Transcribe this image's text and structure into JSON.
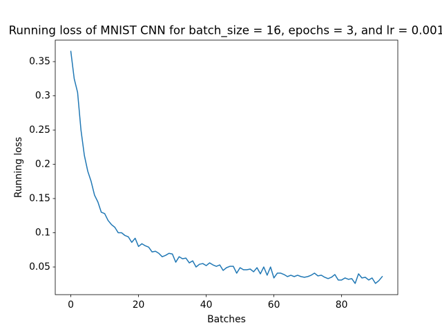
{
  "chart_data": {
    "type": "line",
    "title": "Running loss of MNIST CNN for batch_size = 16, epochs = 3, and lr = 0.001",
    "x_label": "Batches",
    "y_label": "Running loss",
    "x": [
      0,
      1,
      2,
      3,
      4,
      5,
      6,
      7,
      8,
      9,
      10,
      11,
      12,
      13,
      14,
      15,
      16,
      17,
      18,
      19,
      20,
      21,
      22,
      23,
      24,
      25,
      26,
      27,
      28,
      29,
      30,
      31,
      32,
      33,
      34,
      35,
      36,
      37,
      38,
      39,
      40,
      41,
      42,
      43,
      44,
      45,
      46,
      47,
      48,
      49,
      50,
      51,
      52,
      53,
      54,
      55,
      56,
      57,
      58,
      59,
      60,
      61,
      62,
      63,
      64,
      65,
      66,
      67,
      68,
      69,
      70,
      71,
      72,
      73,
      74,
      75,
      76,
      77,
      78,
      79,
      80,
      81,
      82,
      83,
      84,
      85,
      86,
      87,
      88,
      89,
      90,
      91,
      92
    ],
    "series": [
      {
        "name": "Running loss",
        "color": "#1f77b4",
        "values": [
          0.365,
          0.325,
          0.305,
          0.25,
          0.213,
          0.19,
          0.175,
          0.155,
          0.145,
          0.13,
          0.128,
          0.118,
          0.112,
          0.108,
          0.1,
          0.1,
          0.096,
          0.094,
          0.086,
          0.092,
          0.08,
          0.084,
          0.081,
          0.079,
          0.072,
          0.073,
          0.07,
          0.065,
          0.067,
          0.07,
          0.069,
          0.057,
          0.065,
          0.062,
          0.063,
          0.056,
          0.059,
          0.05,
          0.054,
          0.055,
          0.052,
          0.056,
          0.053,
          0.051,
          0.053,
          0.045,
          0.049,
          0.051,
          0.051,
          0.041,
          0.049,
          0.046,
          0.046,
          0.047,
          0.043,
          0.049,
          0.04,
          0.05,
          0.038,
          0.05,
          0.034,
          0.041,
          0.041,
          0.039,
          0.036,
          0.038,
          0.036,
          0.038,
          0.036,
          0.035,
          0.036,
          0.038,
          0.041,
          0.037,
          0.038,
          0.035,
          0.033,
          0.035,
          0.039,
          0.031,
          0.031,
          0.034,
          0.032,
          0.033,
          0.026,
          0.04,
          0.034,
          0.035,
          0.031,
          0.034,
          0.026,
          0.03,
          0.036
        ]
      }
    ],
    "xlim": [
      -4.6,
      96.6
    ],
    "ylim": [
      0.0096,
      0.3814
    ],
    "xticks": [
      0,
      20,
      40,
      60,
      80
    ],
    "yticks": [
      0.05,
      0.1,
      0.15,
      0.2,
      0.25,
      0.3,
      0.35
    ],
    "grid": false
  }
}
